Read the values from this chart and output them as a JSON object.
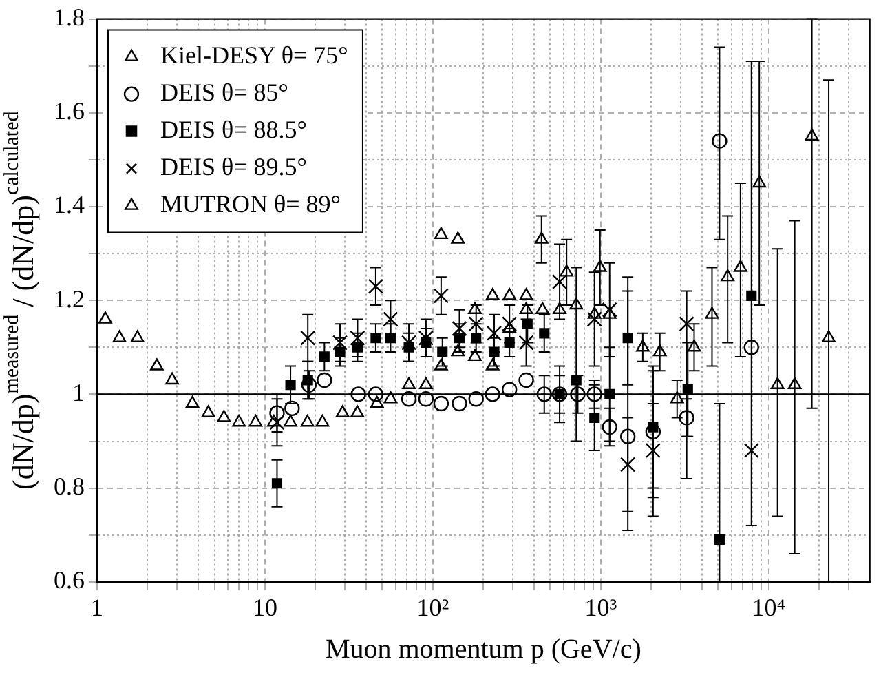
{
  "chart_data": {
    "type": "scatter",
    "xlabel": "Muon momentum p (GeV/c)",
    "ylabel": "(dN/dp)$^{measured}$ / (dN/dp)$^{calculated}$",
    "log": "x",
    "grid": true,
    "legend": "top left",
    "xlim": [
      1,
      40000
    ],
    "xticks": [
      1,
      {
        "value": 2,
        "label": null
      },
      {
        "value": 3,
        "label": null
      },
      {
        "value": 4,
        "label": null
      },
      {
        "value": 5,
        "label": null
      },
      {
        "value": 6,
        "label": null
      },
      {
        "value": 7,
        "label": null
      },
      {
        "value": 8,
        "label": null
      },
      {
        "value": 9,
        "label": null
      },
      10,
      {
        "value": 20,
        "label": null
      },
      {
        "value": 30,
        "label": null
      },
      {
        "value": 40,
        "label": null
      },
      {
        "value": 50,
        "label": null
      },
      {
        "value": 60,
        "label": null
      },
      {
        "value": 70,
        "label": null
      },
      {
        "value": 80,
        "label": null
      },
      {
        "value": 90,
        "label": null
      },
      {
        "value": 100,
        "label": "10²"
      },
      {
        "value": 200,
        "label": null
      },
      {
        "value": 300,
        "label": null
      },
      {
        "value": 400,
        "label": null
      },
      {
        "value": 500,
        "label": null
      },
      {
        "value": 600,
        "label": null
      },
      {
        "value": 700,
        "label": null
      },
      {
        "value": 800,
        "label": null
      },
      {
        "value": 900,
        "label": null
      },
      {
        "value": 1000,
        "label": "10³"
      },
      {
        "value": 2000,
        "label": null
      },
      {
        "value": 3000,
        "label": null
      },
      {
        "value": 4000,
        "label": null
      },
      {
        "value": 5000,
        "label": null
      },
      {
        "value": 6000,
        "label": null
      },
      {
        "value": 7000,
        "label": null
      },
      {
        "value": 8000,
        "label": null
      },
      {
        "value": 9000,
        "label": null
      },
      {
        "value": 10000,
        "label": "10⁴"
      },
      {
        "value": 20000,
        "label": null
      },
      {
        "value": 30000,
        "label": null
      }
    ],
    "ylim": [
      0.6,
      1.8
    ],
    "yticks": [
      0.6,
      {
        "value": 0.7,
        "label": null
      },
      0.8,
      {
        "value": 0.9,
        "label": null
      },
      1.0,
      {
        "value": 1.1,
        "label": null
      },
      1.2,
      {
        "value": 1.3,
        "label": null
      },
      1.4,
      {
        "value": 1.5,
        "label": null
      },
      1.6,
      {
        "value": 1.7,
        "label": null
      },
      1.8
    ],
    "ref_lines": [
      {
        "axis": "y",
        "value": 1.0,
        "color": "#000000"
      }
    ],
    "series": [
      {
        "name": "Kiel-DESY θ= 75°",
        "color": "#000000",
        "marker": "triangle",
        "x": [
          1.12,
          1.36,
          1.74,
          2.27,
          2.8,
          3.7,
          4.6,
          5.7,
          7.0,
          8.8,
          11.3,
          14.2,
          17.9,
          22,
          29,
          35.5,
          46.5,
          56,
          72,
          91,
          112,
          141,
          178,
          227,
          286,
          360,
          444,
          626,
          990
        ],
        "values": [
          1.16,
          1.12,
          1.12,
          1.06,
          1.03,
          0.98,
          0.96,
          0.95,
          0.94,
          0.94,
          0.94,
          0.94,
          0.94,
          0.94,
          0.96,
          0.96,
          0.98,
          0.99,
          1.02,
          1.02,
          1.06,
          1.09,
          1.08,
          1.06,
          1.14,
          1.18,
          1.33,
          1.26,
          1.27
        ],
        "errors": [
          null,
          null,
          null,
          null,
          null,
          null,
          null,
          null,
          null,
          null,
          null,
          null,
          null,
          null,
          null,
          null,
          null,
          null,
          null,
          null,
          null,
          null,
          null,
          null,
          null,
          null,
          0.05,
          0.07,
          0.08
        ]
      },
      {
        "name": "DEIS θ= 85°",
        "color": "#000000",
        "marker": "circle",
        "x": [
          11.8,
          14.5,
          18.3,
          22.6,
          36,
          45.7,
          72,
          91,
          112,
          144,
          181,
          227,
          286,
          360,
          461,
          569,
          730,
          918,
          1130,
          1450,
          2050,
          3250,
          5100,
          7900
        ],
        "values": [
          0.96,
          0.97,
          1.02,
          1.03,
          1.0,
          1.0,
          0.99,
          0.99,
          0.98,
          0.98,
          0.99,
          1.0,
          1.01,
          1.03,
          1.0,
          1.0,
          1.0,
          1.0,
          0.93,
          0.91,
          0.92,
          0.95,
          1.54,
          1.1
        ],
        "errors": [
          0.04,
          null,
          0.03,
          null,
          null,
          null,
          null,
          null,
          null,
          null,
          null,
          null,
          null,
          null,
          0.04,
          0.04,
          0.04,
          0.03,
          0.04,
          [
            0.71,
            1.25
          ],
          [
            0.74,
            1.05
          ],
          0.04,
          [
            1.33,
            1.74
          ],
          [
            0.72,
            1.71
          ]
        ]
      },
      {
        "name": "DEIS θ= 88.5°",
        "color": "#000000",
        "marker": "square",
        "x": [
          11.8,
          14.2,
          18,
          22.6,
          28,
          35.6,
          45.7,
          56,
          72,
          91,
          114,
          144,
          181,
          232,
          286,
          366,
          461,
          569,
          715,
          918,
          1130,
          1450,
          2050,
          3300,
          5100,
          7900
        ],
        "values": [
          0.81,
          1.02,
          1.03,
          1.08,
          1.09,
          1.1,
          1.12,
          1.12,
          1.1,
          1.11,
          1.09,
          1.12,
          1.12,
          1.09,
          1.11,
          1.15,
          1.13,
          1.0,
          1.03,
          0.95,
          1.0,
          1.12,
          0.93,
          1.01,
          0.69,
          1.21
        ],
        "errors": [
          0.05,
          0.04,
          0.04,
          0.03,
          0.03,
          0.03,
          0.03,
          0.03,
          0.03,
          0.03,
          0.03,
          0.03,
          0.03,
          0.03,
          0.03,
          0.04,
          0.04,
          0.06,
          [
            0.9,
            1.27
          ],
          0.07,
          0.1,
          0.1,
          0.13,
          0.1,
          [
            0.6,
            0.98
          ],
          null
        ]
      },
      {
        "name": "DEIS θ= 89.5°",
        "color": "#000000",
        "marker": "cross",
        "x": [
          11.8,
          18,
          28,
          35.6,
          45.7,
          56,
          72,
          91,
          112,
          144,
          181,
          232,
          286,
          360,
          569,
          918,
          1130,
          1450,
          2050,
          3250,
          7900
        ],
        "values": [
          0.94,
          1.12,
          1.11,
          1.12,
          1.23,
          1.16,
          1.11,
          1.12,
          1.21,
          1.14,
          1.15,
          1.13,
          1.15,
          1.11,
          1.24,
          1.16,
          1.18,
          0.85,
          0.88,
          1.15,
          0.88
        ],
        "errors": [
          0.05,
          0.05,
          0.04,
          0.04,
          0.04,
          0.04,
          0.04,
          0.04,
          0.04,
          0.04,
          0.04,
          0.04,
          0.04,
          0.05,
          0.08,
          0.1,
          0.1,
          0.1,
          0.1,
          [
            0.82,
            1.22
          ],
          null
        ]
      },
      {
        "name": "MUTRON θ= 89°",
        "color": "#000000",
        "marker": "triangle",
        "x": [
          112,
          141,
          178,
          227,
          286,
          360,
          450,
          569,
          715,
          918,
          1130,
          1780,
          2250,
          2850,
          3600,
          4600,
          5700,
          6800,
          8800,
          11300,
          14300,
          18100,
          22800
        ],
        "values": [
          1.34,
          1.33,
          1.18,
          1.21,
          1.21,
          1.21,
          1.18,
          1.18,
          1.19,
          1.17,
          1.17,
          1.1,
          1.09,
          0.99,
          1.1,
          1.17,
          1.25,
          1.27,
          1.45,
          1.02,
          1.02,
          1.55,
          1.12
        ],
        "errors": [
          null,
          null,
          null,
          null,
          null,
          null,
          null,
          null,
          null,
          null,
          null,
          0.03,
          0.04,
          0.04,
          0.05,
          [
            1.06,
            1.27
          ],
          [
            1.11,
            1.38
          ],
          [
            1.08,
            1.45
          ],
          [
            1.19,
            1.71
          ],
          [
            0.74,
            1.31
          ],
          [
            0.66,
            1.37
          ],
          [
            0.97,
            1.8
          ],
          [
            0.6,
            1.67
          ]
        ]
      }
    ]
  }
}
